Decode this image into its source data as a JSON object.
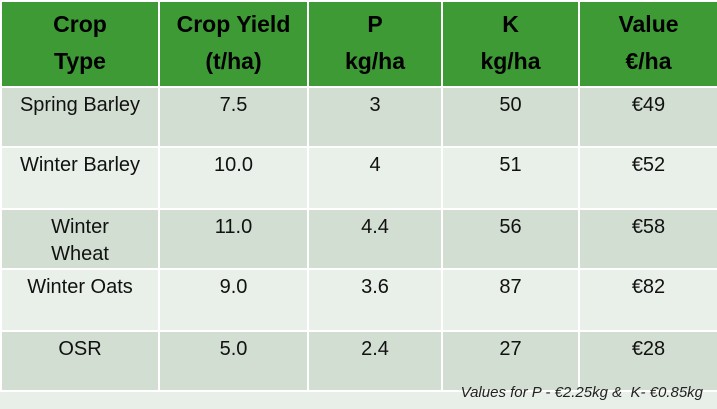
{
  "table": {
    "header": [
      "Crop\nType",
      "Crop Yield\n(t/ha)",
      "P\nkg/ha",
      "K\nkg/ha",
      "Value\n€/ha"
    ],
    "rows": [
      [
        "Spring Barley",
        "7.5",
        "3",
        "50",
        "€49"
      ],
      [
        "Winter Barley",
        "10.0",
        "4",
        "51",
        "€52"
      ],
      [
        "Winter\nWheat",
        "11.0",
        "4.4",
        "56",
        "€58"
      ],
      [
        "Winter Oats",
        "9.0",
        "3.6",
        "87",
        "€82"
      ],
      [
        "OSR",
        "5.0",
        "2.4",
        "27",
        "€28"
      ]
    ]
  },
  "footnote": "Values for P - €2.25kg &  K- €0.85kg"
}
